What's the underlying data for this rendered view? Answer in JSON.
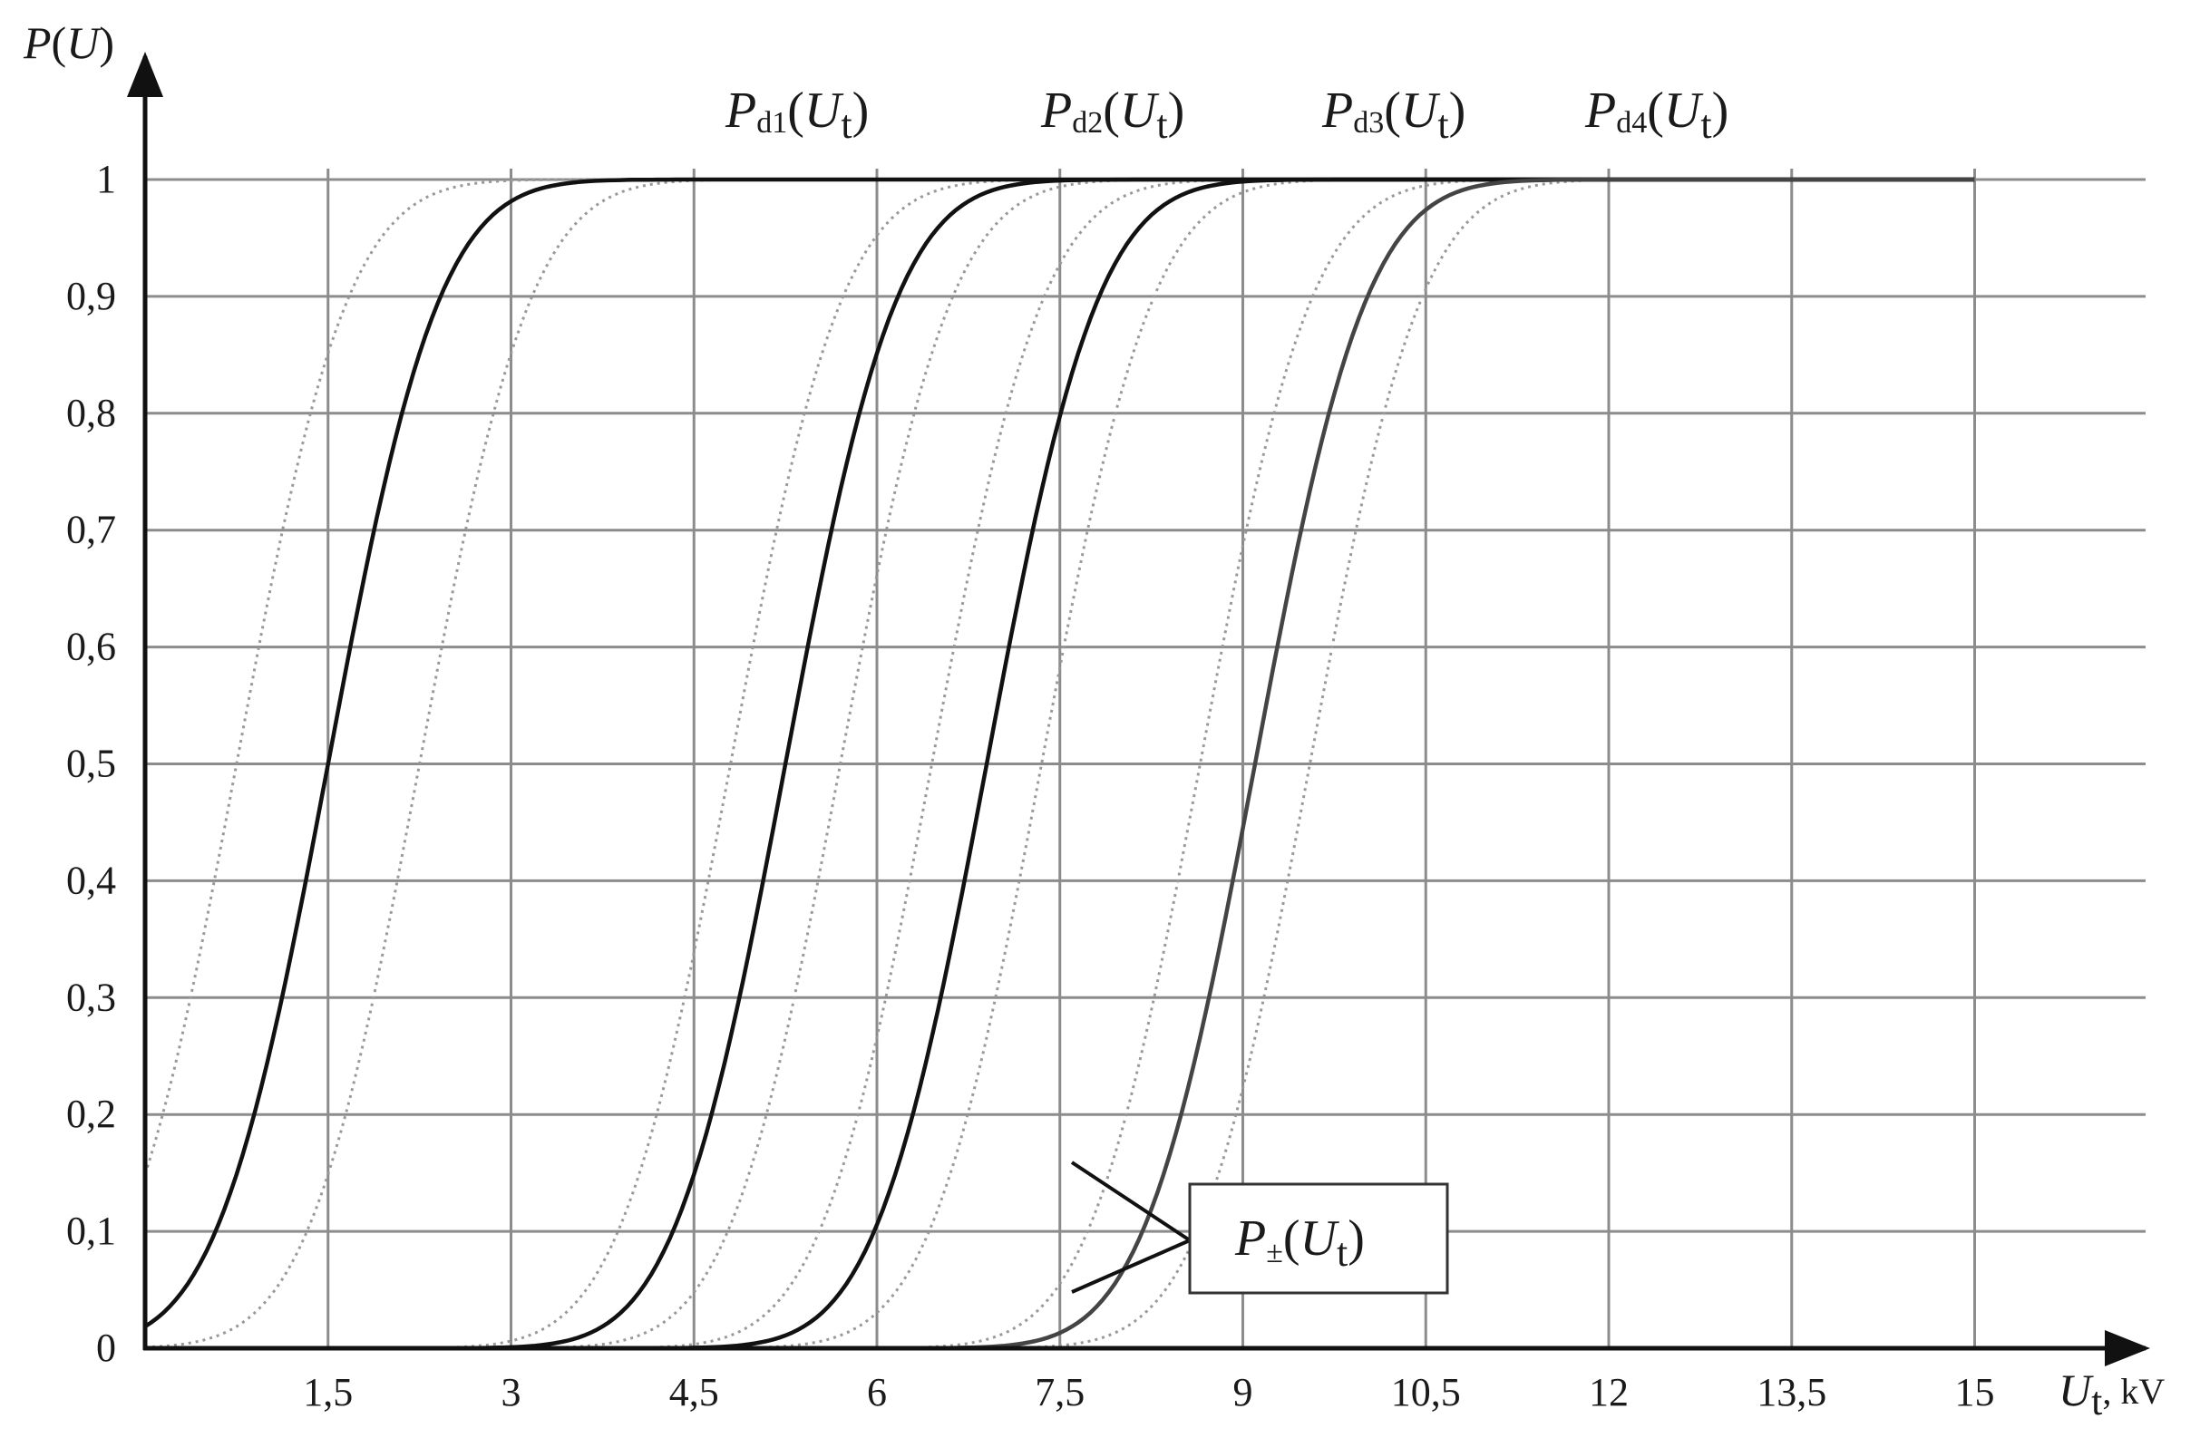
{
  "chart_data": {
    "type": "line",
    "y_axis_title": "P(U)",
    "x_axis_title": "Ut, kV",
    "xlim": [
      0,
      16.5
    ],
    "ylim": [
      0,
      1
    ],
    "x_ticks": [
      "1.5",
      "3",
      "4.5",
      "6",
      "7.5",
      "9",
      "10.5",
      "12",
      "13.5",
      "15"
    ],
    "y_ticks": [
      "0",
      "0.1",
      "0.2",
      "0.3",
      "0.4",
      "0.5",
      "0.6",
      "0.7",
      "0.8",
      "0.9",
      "1"
    ],
    "tick_display": {
      "x": [
        "1,5",
        "3",
        "4,5",
        "6",
        "7,5",
        "9",
        "10,5",
        "12",
        "13,5",
        "15"
      ],
      "y": [
        "0",
        "0,1",
        "0,2",
        "0,3",
        "0,4",
        "0,5",
        "0,6",
        "0,7",
        "0,8",
        "0,9",
        "1"
      ]
    },
    "grid": true,
    "series": [
      {
        "name": "Pd1(Ut)",
        "style": "solid",
        "color": "#111111",
        "mu": 1.5,
        "sigma": 0.72,
        "x_range": [
          0,
          15
        ]
      },
      {
        "name": "Pd2(Ut)",
        "style": "solid",
        "color": "#111111",
        "mu": 5.25,
        "sigma": 0.72,
        "x_range": [
          0,
          15
        ]
      },
      {
        "name": "Pd3(Ut)",
        "style": "solid",
        "color": "#111111",
        "mu": 6.9,
        "sigma": 0.72,
        "x_range": [
          0,
          15
        ]
      },
      {
        "name": "Pd4(Ut)",
        "style": "solid",
        "color": "#444444",
        "mu": 9.1,
        "sigma": 0.72,
        "x_range": [
          0,
          15
        ]
      },
      {
        "name": "P±(Ut)",
        "style": "dotted",
        "color": "#999999",
        "bands": [
          {
            "mu": 0.75,
            "sigma": 0.72
          },
          {
            "mu": 2.25,
            "sigma": 0.72
          },
          {
            "mu": 4.8,
            "sigma": 0.72
          },
          {
            "mu": 5.7,
            "sigma": 0.72
          },
          {
            "mu": 6.45,
            "sigma": 0.72
          },
          {
            "mu": 7.35,
            "sigma": 0.72
          },
          {
            "mu": 8.65,
            "sigma": 0.72
          },
          {
            "mu": 9.55,
            "sigma": 0.72
          }
        ],
        "x_range": [
          0,
          12
        ]
      }
    ],
    "labels": {
      "pd1": {
        "main": "P",
        "sub": "d1",
        "arg": "U",
        "argsub": "t"
      },
      "pd2": {
        "main": "P",
        "sub": "d2",
        "arg": "U",
        "argsub": "t"
      },
      "pd3": {
        "main": "P",
        "sub": "d3",
        "arg": "U",
        "argsub": "t"
      },
      "pd4": {
        "main": "P",
        "sub": "d4",
        "arg": "U",
        "argsub": "t"
      },
      "band": {
        "main": "P",
        "sub": "±",
        "arg": "U",
        "argsub": "t"
      }
    },
    "axis_titles": {
      "y": {
        "main": "P",
        "arg": "U"
      },
      "x": {
        "main": "U",
        "sub": "t",
        "unit": ", kV"
      }
    }
  }
}
